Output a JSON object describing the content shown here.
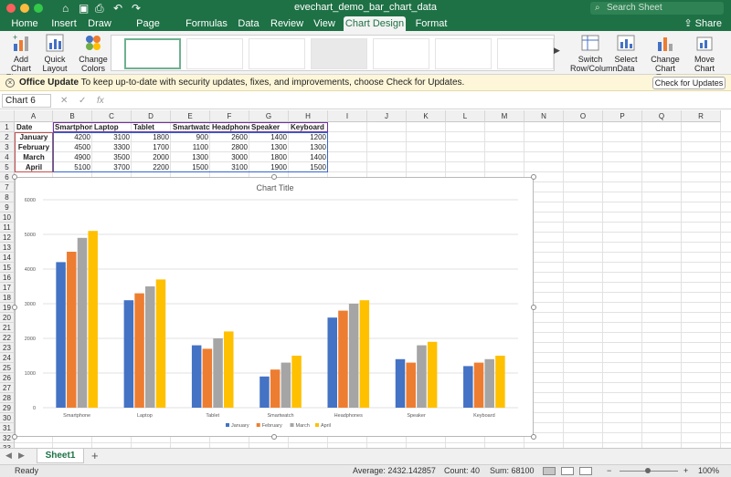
{
  "window": {
    "title": "evechart_demo_bar_chart_data",
    "search_placeholder": "Search Sheet"
  },
  "tabs": [
    "Home",
    "Insert",
    "Draw",
    "Page Layout",
    "Formulas",
    "Data",
    "Review",
    "View",
    "Chart Design",
    "Format"
  ],
  "active_tab": "Chart Design",
  "share_label": "Share",
  "ribbon": {
    "add_chart_element": "Add Chart Element",
    "quick_layout": "Quick Layout",
    "change_colors": "Change Colors",
    "switch_row_column": "Switch Row/Column",
    "select_data": "Select Data",
    "change_chart_type": "Change Chart Type",
    "move_chart": "Move Chart"
  },
  "infobar": {
    "title": "Office Update",
    "message": "To keep up-to-date with security updates, fixes, and improvements, choose Check for Updates.",
    "button": "Check for Updates"
  },
  "formula_bar": {
    "name_box": "Chart 6",
    "fx": "fx",
    "cancel": "✕",
    "confirm": "✓"
  },
  "columns": [
    "A",
    "B",
    "C",
    "D",
    "E",
    "F",
    "G",
    "H",
    "I",
    "J",
    "K",
    "L",
    "M",
    "N",
    "O",
    "P",
    "Q",
    "R"
  ],
  "rows": [
    "1",
    "2",
    "3",
    "4",
    "5",
    "6",
    "7",
    "8",
    "9",
    "10",
    "11",
    "12",
    "13",
    "14",
    "15",
    "16",
    "17",
    "18",
    "19",
    "20",
    "21",
    "22",
    "23",
    "24",
    "25",
    "26",
    "27",
    "28",
    "29",
    "30",
    "31",
    "32",
    "33"
  ],
  "sheet": {
    "header": [
      "Date",
      "Smartphone",
      "Laptop",
      "Tablet",
      "Smartwatch",
      "Headphones",
      "Speaker",
      "Keyboard"
    ],
    "data": [
      [
        "January",
        "4200",
        "3100",
        "1800",
        "900",
        "2600",
        "1400",
        "1200"
      ],
      [
        "February",
        "4500",
        "3300",
        "1700",
        "1100",
        "2800",
        "1300",
        "1300"
      ],
      [
        "March",
        "4900",
        "3500",
        "2000",
        "1300",
        "3000",
        "1800",
        "1400"
      ],
      [
        "April",
        "5100",
        "3700",
        "2200",
        "1500",
        "3100",
        "1900",
        "1500"
      ]
    ]
  },
  "colors": {
    "series": [
      "#4472c4",
      "#ed7d31",
      "#a5a5a5",
      "#ffc000"
    ],
    "excel_green": "#1e7145"
  },
  "chart_data": {
    "type": "bar",
    "title": "Chart Title",
    "categories": [
      "Smartphone",
      "Laptop",
      "Tablet",
      "Smartwatch",
      "Headphones",
      "Speaker",
      "Keyboard"
    ],
    "series": [
      {
        "name": "January",
        "values": [
          4200,
          3100,
          1800,
          900,
          2600,
          1400,
          1200
        ]
      },
      {
        "name": "February",
        "values": [
          4500,
          3300,
          1700,
          1100,
          2800,
          1300,
          1300
        ]
      },
      {
        "name": "March",
        "values": [
          4900,
          3500,
          2000,
          1300,
          3000,
          1800,
          1400
        ]
      },
      {
        "name": "April",
        "values": [
          5100,
          3700,
          2200,
          1500,
          3100,
          1900,
          1500
        ]
      }
    ],
    "ylim": [
      0,
      6000
    ],
    "yticks": [
      "0",
      "1000",
      "2000",
      "3000",
      "4000",
      "5000",
      "6000"
    ],
    "grid": true,
    "legend": "bottom"
  },
  "sheet_tabs": {
    "active": "Sheet1",
    "add": "+"
  },
  "status": {
    "ready": "Ready",
    "average": "Average: 2432.142857",
    "count": "Count: 40",
    "sum": "Sum: 68100",
    "zoom": "100%",
    "zoom_minus": "−",
    "zoom_plus": "+"
  }
}
